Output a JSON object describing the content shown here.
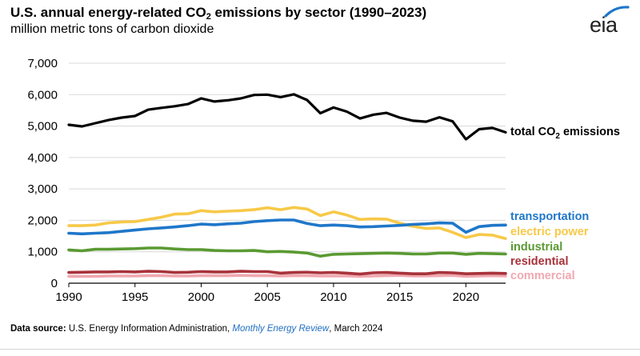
{
  "chart_data": {
    "type": "line",
    "title_prefix": "U.S. annual energy-related CO",
    "title_sub": "2",
    "title_suffix": " emissions by sector (1990–2023)",
    "subtitle": "million metric tons of carbon dioxide",
    "xlabel": "",
    "ylabel": "million metric tons of carbon dioxide",
    "xlim": [
      1990,
      2023
    ],
    "ylim": [
      0,
      7000
    ],
    "xticks": [
      1990,
      1995,
      2000,
      2005,
      2010,
      2015,
      2020
    ],
    "yticks": [
      0,
      1000,
      2000,
      3000,
      4000,
      5000,
      6000,
      7000
    ],
    "ytick_labels": [
      "0",
      "1,000",
      "2,000",
      "3,000",
      "4,000",
      "5,000",
      "6,000",
      "7,000"
    ],
    "grid": true,
    "x": [
      1990,
      1991,
      1992,
      1993,
      1994,
      1995,
      1996,
      1997,
      1998,
      1999,
      2000,
      2001,
      2002,
      2003,
      2004,
      2005,
      2006,
      2007,
      2008,
      2009,
      2010,
      2011,
      2012,
      2013,
      2014,
      2015,
      2016,
      2017,
      2018,
      2019,
      2020,
      2021,
      2022,
      2023
    ],
    "series": [
      {
        "name": "total",
        "label_prefix": "total CO",
        "label_sub": "2",
        "label_suffix": " emissions",
        "color": "#000000",
        "values": [
          5040,
          4990,
          5090,
          5190,
          5270,
          5320,
          5520,
          5580,
          5630,
          5700,
          5880,
          5780,
          5820,
          5880,
          5990,
          6000,
          5920,
          6010,
          5830,
          5410,
          5590,
          5460,
          5240,
          5360,
          5420,
          5270,
          5170,
          5140,
          5280,
          5150,
          4580,
          4900,
          4940,
          4800
        ]
      },
      {
        "name": "transportation",
        "label": "transportation",
        "color": "#1f77c9",
        "values": [
          1590,
          1570,
          1590,
          1610,
          1650,
          1690,
          1730,
          1760,
          1790,
          1830,
          1880,
          1860,
          1890,
          1910,
          1960,
          1990,
          2010,
          2010,
          1900,
          1830,
          1850,
          1830,
          1790,
          1800,
          1820,
          1840,
          1870,
          1890,
          1920,
          1910,
          1620,
          1800,
          1840,
          1850
        ]
      },
      {
        "name": "electric power",
        "label": "electric power",
        "color": "#f7c948",
        "values": [
          1830,
          1830,
          1850,
          1920,
          1950,
          1960,
          2030,
          2100,
          2200,
          2210,
          2310,
          2270,
          2290,
          2310,
          2340,
          2400,
          2340,
          2410,
          2360,
          2150,
          2270,
          2170,
          2030,
          2050,
          2040,
          1910,
          1810,
          1740,
          1760,
          1620,
          1450,
          1550,
          1530,
          1420
        ]
      },
      {
        "name": "industrial",
        "label": "industrial",
        "color": "#5a9a32",
        "values": [
          1060,
          1030,
          1080,
          1080,
          1090,
          1100,
          1120,
          1120,
          1090,
          1070,
          1070,
          1040,
          1030,
          1030,
          1040,
          1000,
          1010,
          990,
          960,
          860,
          920,
          930,
          940,
          950,
          960,
          950,
          930,
          930,
          960,
          960,
          920,
          950,
          940,
          930
        ]
      },
      {
        "name": "residential",
        "label": "residential",
        "color": "#a8333b",
        "values": [
          340,
          350,
          360,
          360,
          370,
          360,
          380,
          370,
          340,
          350,
          370,
          360,
          360,
          380,
          370,
          370,
          320,
          340,
          350,
          330,
          340,
          320,
          290,
          330,
          340,
          320,
          300,
          300,
          340,
          330,
          300,
          310,
          320,
          310
        ]
      },
      {
        "name": "commercial",
        "label": "commercial",
        "color": "#f0a8b0",
        "values": [
          220,
          220,
          220,
          230,
          230,
          230,
          240,
          240,
          230,
          230,
          240,
          240,
          240,
          250,
          240,
          240,
          230,
          240,
          240,
          230,
          230,
          230,
          220,
          230,
          240,
          250,
          230,
          230,
          240,
          250,
          220,
          230,
          240,
          230
        ]
      }
    ]
  },
  "logo": {
    "text": "eia",
    "color": "#1f77c9"
  },
  "source": {
    "label": "Data source:",
    "text_before": " U.S. Energy Information Administration, ",
    "publication": "Monthly Energy Review",
    "text_after": ", March 2024"
  }
}
